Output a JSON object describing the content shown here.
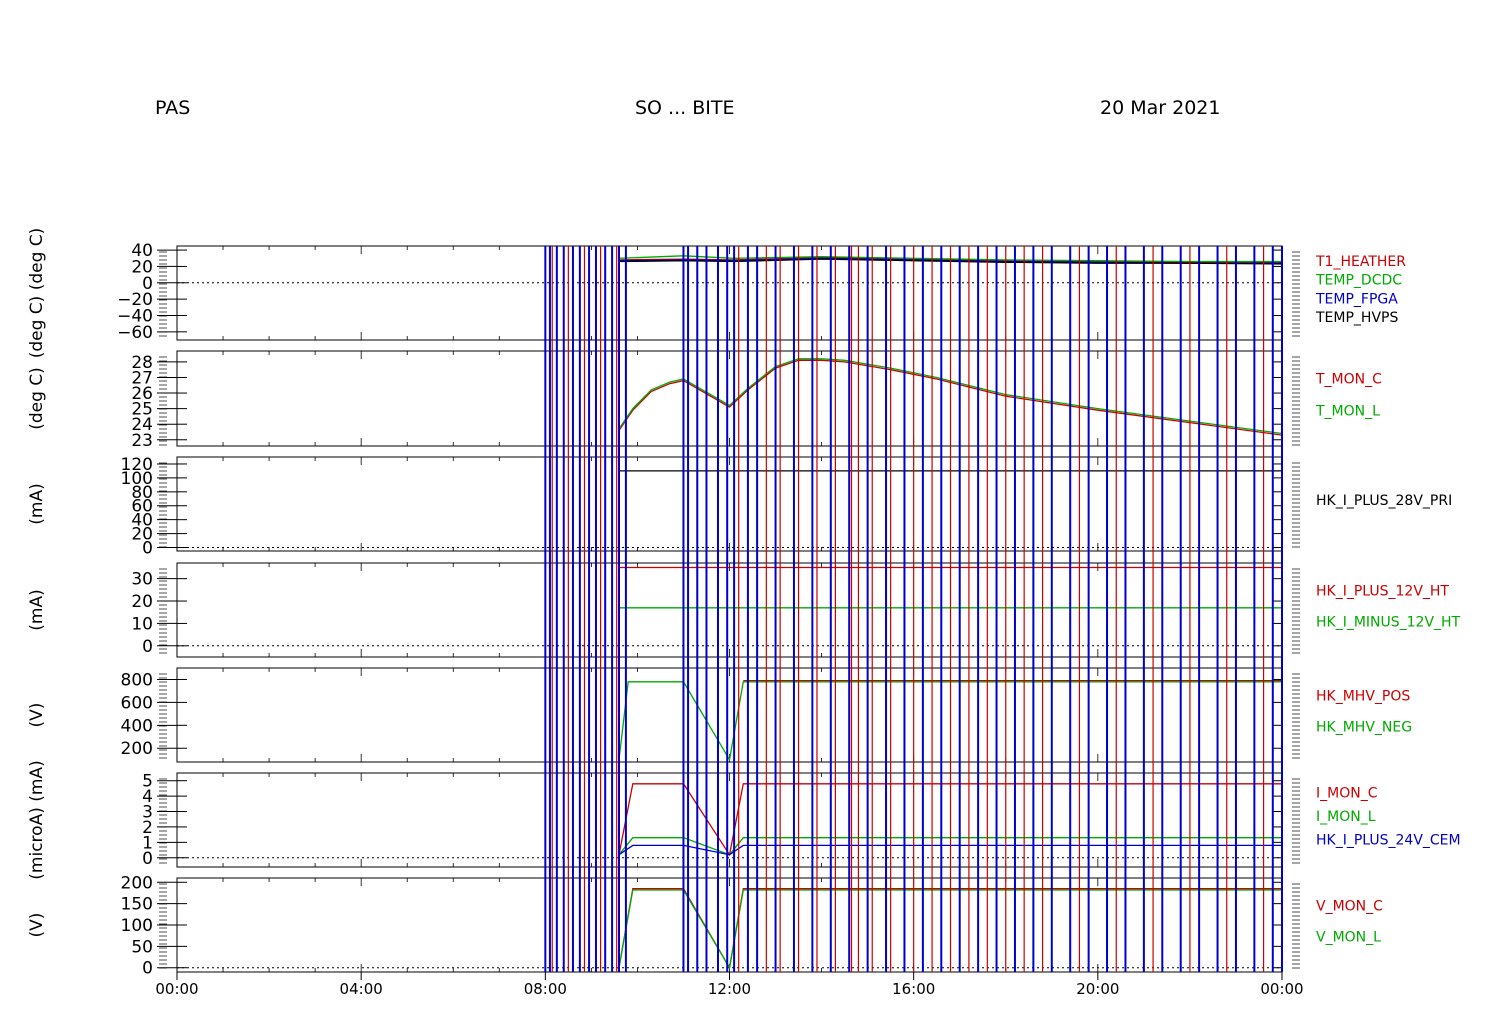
{
  "header": {
    "left": "PAS",
    "center": "SO ... BITE",
    "right": "20 Mar 2021"
  },
  "colors": {
    "red": "#cc0000",
    "green": "#00aa00",
    "blue": "#0000cc",
    "black": "#000000"
  },
  "chart_data": {
    "type": "line",
    "x_range_hours": [
      0,
      24
    ],
    "x_ticks": [
      "00:00",
      "04:00",
      "08:00",
      "12:00",
      "16:00",
      "20:00",
      "00:00"
    ],
    "x_tick_hours": [
      0,
      4,
      8,
      12,
      16,
      20,
      24
    ],
    "event_lines": {
      "blue": [
        8.0,
        8.1,
        8.25,
        8.4,
        8.6,
        8.75,
        8.95,
        9.1,
        9.3,
        9.45,
        9.6,
        9.75,
        11.0,
        11.1,
        11.3,
        11.5,
        11.75,
        11.95,
        12.1,
        12.4,
        12.6,
        13.0,
        13.4,
        13.8,
        14.2,
        14.6,
        15.0,
        15.4,
        15.8,
        16.2,
        16.6,
        17.0,
        17.4,
        17.8,
        18.2,
        18.6,
        19.0,
        19.4,
        19.8,
        20.2,
        20.6,
        21.0,
        21.4,
        21.8,
        22.2,
        22.6,
        23.0,
        23.4,
        23.8,
        24.0
      ],
      "red": [
        8.15,
        8.5,
        8.85,
        9.2,
        9.55,
        12.2,
        12.8,
        13.1,
        13.5,
        13.9,
        14.3,
        14.65,
        14.8,
        15.1,
        15.5,
        16.0,
        16.4,
        16.8,
        17.2,
        17.6,
        18.0,
        18.4,
        18.8,
        19.6,
        20.4,
        21.2,
        22.0,
        22.8,
        23.6
      ]
    },
    "panels": [
      {
        "ylabel": "(deg C)  (deg C)",
        "ylim": [
          -70,
          45
        ],
        "tick_labels": [
          "40",
          "20",
          "0",
          "−20",
          "−40",
          "−60"
        ],
        "tick_values": [
          40,
          20,
          0,
          -20,
          -40,
          -60
        ],
        "zero_line": 0,
        "series": [
          {
            "name": "T1_HEATHER",
            "color": "#cc0000",
            "x": [
              9.6,
              11.0,
              12.1,
              14,
              16,
              18,
              20,
              22,
              24
            ],
            "y": [
              28,
              29,
              28,
              31,
              29,
              27,
              26,
              25,
              25
            ]
          },
          {
            "name": "TEMP_DCDC",
            "color": "#00aa00",
            "x": [
              9.6,
              11.0,
              12.1,
              14,
              16,
              18,
              20,
              22,
              24
            ],
            "y": [
              30,
              33,
              30,
              32,
              30,
              28,
              27,
              26,
              26
            ]
          },
          {
            "name": "TEMP_FPGA",
            "color": "#0000cc",
            "x": [
              9.6,
              11.0,
              12.1,
              14,
              16,
              18,
              20,
              22,
              24
            ],
            "y": [
              27,
              28,
              27,
              30,
              28,
              26,
              25,
              24,
              24
            ]
          },
          {
            "name": "TEMP_HVPS",
            "color": "#000000",
            "x": [
              9.6,
              11.0,
              12.1,
              14,
              16,
              18,
              20,
              22,
              24
            ],
            "y": [
              26,
              27,
              26,
              29,
              27,
              25,
              24,
              24,
              23
            ]
          }
        ]
      },
      {
        "ylabel": "(deg C)",
        "ylim": [
          22.6,
          28.7
        ],
        "tick_labels": [
          "28",
          "27",
          "26",
          "25",
          "24",
          "23"
        ],
        "tick_values": [
          28,
          27,
          26,
          25,
          24,
          23
        ],
        "series": [
          {
            "name": "T_MON_C",
            "color": "#cc0000",
            "x": [
              9.6,
              9.9,
              10.3,
              10.7,
              11.0,
              12.0,
              12.4,
              13.0,
              13.5,
              14.0,
              14.5,
              15.5,
              16.5,
              18.0,
              20.0,
              22.0,
              24.0
            ],
            "y": [
              23.6,
              24.9,
              26.1,
              26.6,
              26.8,
              25.1,
              26.2,
              27.6,
              28.1,
              28.1,
              28.0,
              27.5,
              26.9,
              25.8,
              24.9,
              24.1,
              23.3
            ]
          },
          {
            "name": "T_MON_L",
            "color": "#00aa00",
            "x": [
              9.6,
              9.9,
              10.3,
              10.7,
              11.0,
              12.0,
              12.4,
              13.0,
              13.5,
              14.0,
              14.5,
              15.5,
              16.5,
              18.0,
              20.0,
              22.0,
              24.0
            ],
            "y": [
              23.7,
              25.0,
              26.2,
              26.7,
              26.9,
              25.2,
              26.3,
              27.7,
              28.2,
              28.2,
              28.1,
              27.6,
              27.0,
              25.9,
              25.0,
              24.2,
              23.4
            ]
          }
        ]
      },
      {
        "ylabel": "(mA)",
        "ylim": [
          -5,
          130
        ],
        "tick_labels": [
          "120",
          "100",
          "80",
          "60",
          "40",
          "20",
          "0"
        ],
        "tick_values": [
          120,
          100,
          80,
          60,
          40,
          20,
          0
        ],
        "zero_line": 0,
        "series": [
          {
            "name": "HK_I_PLUS_28V_PRI",
            "color": "#000000",
            "x": [
              9.6,
              11.0,
              12.1,
              24.0
            ],
            "y": [
              110,
              110,
              110,
              110
            ]
          }
        ]
      },
      {
        "ylabel": "(mA)",
        "ylim": [
          -5,
          37
        ],
        "tick_labels": [
          "30",
          "20",
          "10",
          "0"
        ],
        "tick_values": [
          30,
          20,
          10,
          0
        ],
        "zero_line": 0,
        "series": [
          {
            "name": "HK_I_PLUS_12V_HT",
            "color": "#cc0000",
            "x": [
              9.6,
              11.0,
              12.1,
              24.0
            ],
            "y": [
              35,
              35,
              35,
              35
            ]
          },
          {
            "name": "HK_I_MINUS_12V_HT",
            "color": "#00aa00",
            "x": [
              9.6,
              11.0,
              12.1,
              24.0
            ],
            "y": [
              17,
              17,
              17,
              17
            ]
          }
        ]
      },
      {
        "ylabel": "(V)",
        "ylim": [
          80,
          900
        ],
        "tick_labels": [
          "800",
          "600",
          "400",
          "200"
        ],
        "tick_values": [
          800,
          600,
          400,
          200
        ],
        "series": [
          {
            "name": "HK_MHV_POS",
            "color": "#cc0000",
            "x": [
              12.3,
              24.0
            ],
            "y": [
              790,
              790
            ]
          },
          {
            "name": "HK_MHV_NEG",
            "color": "#00aa00",
            "x": [
              9.6,
              9.8,
              11.0,
              12.0,
              12.3,
              24.0
            ],
            "y": [
              100,
              780,
              780,
              100,
              780,
              780
            ]
          }
        ]
      },
      {
        "ylabel": "(microA)  (mA)",
        "ylim": [
          -0.6,
          5.5
        ],
        "tick_labels": [
          "5",
          "4",
          "3",
          "2",
          "1",
          "0"
        ],
        "tick_values": [
          5,
          4,
          3,
          2,
          1,
          0
        ],
        "zero_line": 0,
        "series": [
          {
            "name": "I_MON_C",
            "color": "#cc0000",
            "x": [
              9.6,
              9.9,
              11.0,
              12.0,
              12.3,
              24.0
            ],
            "y": [
              0.2,
              4.8,
              4.8,
              0.2,
              4.8,
              4.8
            ]
          },
          {
            "name": "I_MON_L",
            "color": "#00aa00",
            "x": [
              9.6,
              9.9,
              11.0,
              12.0,
              12.3,
              24.0
            ],
            "y": [
              0.2,
              1.3,
              1.3,
              0.2,
              1.3,
              1.3
            ]
          },
          {
            "name": "HK_I_PLUS_24V_CEM",
            "color": "#0000cc",
            "x": [
              9.6,
              9.9,
              11.0,
              12.0,
              12.3,
              24.0
            ],
            "y": [
              0.2,
              0.8,
              0.8,
              0.2,
              0.8,
              0.8
            ]
          }
        ]
      },
      {
        "ylabel": "(V)",
        "ylim": [
          -10,
          210
        ],
        "tick_labels": [
          "200",
          "150",
          "100",
          "50",
          "0"
        ],
        "tick_values": [
          200,
          150,
          100,
          50,
          0
        ],
        "zero_line": 0,
        "series": [
          {
            "name": "V_MON_C",
            "color": "#cc0000",
            "x": [
              9.6,
              9.9,
              11.0,
              12.0,
              12.3,
              24.0
            ],
            "y": [
              0,
              185,
              185,
              0,
              185,
              185
            ]
          },
          {
            "name": "V_MON_L",
            "color": "#00aa00",
            "x": [
              9.6,
              9.9,
              11.0,
              12.0,
              12.3,
              24.0
            ],
            "y": [
              0,
              182,
              182,
              0,
              182,
              182
            ]
          }
        ]
      }
    ]
  }
}
